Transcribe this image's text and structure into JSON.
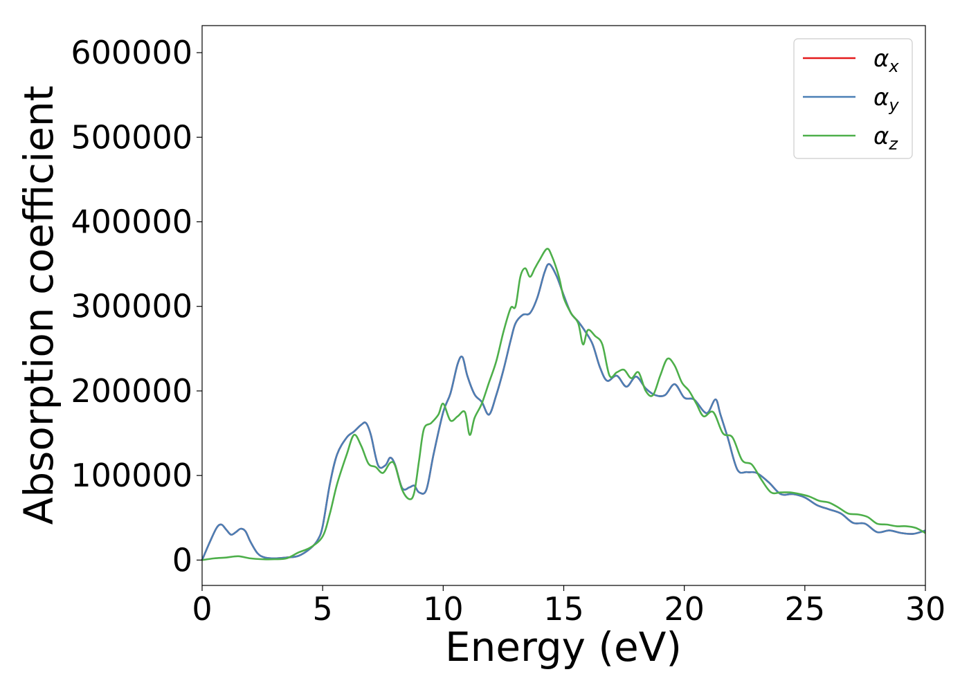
{
  "chart_data": {
    "type": "line",
    "xlabel": "Energy (eV)",
    "ylabel": "Absorption coefficient",
    "xlim": [
      0,
      30
    ],
    "ylim": [
      -30000,
      632000
    ],
    "xticks": [
      0,
      5,
      10,
      15,
      20,
      25,
      30
    ],
    "yticks": [
      0,
      100000,
      200000,
      300000,
      400000,
      500000,
      600000
    ],
    "xtick_labels": [
      "0",
      "5",
      "10",
      "15",
      "20",
      "25",
      "30"
    ],
    "ytick_labels": [
      "0",
      "100000",
      "200000",
      "300000",
      "400000",
      "500000",
      "600000"
    ],
    "grid": false,
    "legend_position": "top-right",
    "series": [
      {
        "name": "αx",
        "name_base": "α",
        "name_sub": "x",
        "color": "#e41a1c",
        "x": [
          0,
          0.3,
          0.6,
          0.8,
          1.0,
          1.2,
          1.4,
          1.6,
          1.8,
          2.0,
          2.3,
          2.6,
          3.0,
          3.5,
          4.0,
          4.5,
          4.8,
          5.0,
          5.3,
          5.6,
          6.0,
          6.3,
          6.6,
          6.8,
          7.0,
          7.3,
          7.6,
          7.8,
          8.0,
          8.3,
          8.6,
          8.8,
          9.0,
          9.3,
          9.6,
          10.0,
          10.3,
          10.6,
          10.8,
          11.0,
          11.3,
          11.6,
          11.9,
          12.2,
          12.5,
          12.8,
          13.0,
          13.3,
          13.6,
          13.9,
          14.2,
          14.4,
          14.7,
          15.0,
          15.3,
          15.6,
          15.9,
          16.2,
          16.5,
          16.8,
          17.2,
          17.6,
          18.0,
          18.4,
          18.8,
          19.2,
          19.6,
          20.0,
          20.4,
          20.8,
          21.0,
          21.3,
          21.5,
          21.8,
          22.2,
          22.6,
          23.0,
          23.5,
          24.0,
          24.5,
          25.0,
          25.5,
          26.0,
          26.5,
          27.0,
          27.5,
          28.0,
          28.5,
          29.0,
          29.5,
          30.0
        ],
        "y": [
          0,
          20000,
          38000,
          42000,
          36000,
          30000,
          33000,
          37000,
          34000,
          22000,
          8000,
          3000,
          2000,
          3000,
          5000,
          14000,
          24000,
          40000,
          90000,
          125000,
          145000,
          152000,
          160000,
          162000,
          148000,
          112000,
          112000,
          121000,
          113000,
          85000,
          86000,
          88000,
          80000,
          83000,
          125000,
          175000,
          197000,
          232000,
          240000,
          218000,
          196000,
          187000,
          172000,
          195000,
          225000,
          260000,
          280000,
          290000,
          292000,
          310000,
          340000,
          350000,
          336000,
          313000,
          292000,
          282000,
          270000,
          255000,
          228000,
          212000,
          218000,
          205000,
          217000,
          203000,
          195000,
          195000,
          208000,
          192000,
          190000,
          176000,
          175000,
          190000,
          172000,
          145000,
          107000,
          104000,
          103000,
          92000,
          78000,
          78000,
          74000,
          65000,
          60000,
          55000,
          44000,
          43000,
          33000,
          35000,
          32000,
          31000,
          35000
        ]
      },
      {
        "name": "αy",
        "name_base": "α",
        "name_sub": "y",
        "color": "#4a7fb5",
        "x": [
          0,
          0.3,
          0.6,
          0.8,
          1.0,
          1.2,
          1.4,
          1.6,
          1.8,
          2.0,
          2.3,
          2.6,
          3.0,
          3.5,
          4.0,
          4.5,
          4.8,
          5.0,
          5.3,
          5.6,
          6.0,
          6.3,
          6.6,
          6.8,
          7.0,
          7.3,
          7.6,
          7.8,
          8.0,
          8.3,
          8.6,
          8.8,
          9.0,
          9.3,
          9.6,
          10.0,
          10.3,
          10.6,
          10.8,
          11.0,
          11.3,
          11.6,
          11.9,
          12.2,
          12.5,
          12.8,
          13.0,
          13.3,
          13.6,
          13.9,
          14.2,
          14.4,
          14.7,
          15.0,
          15.3,
          15.6,
          15.9,
          16.2,
          16.5,
          16.8,
          17.2,
          17.6,
          18.0,
          18.4,
          18.8,
          19.2,
          19.6,
          20.0,
          20.4,
          20.8,
          21.0,
          21.3,
          21.5,
          21.8,
          22.2,
          22.6,
          23.0,
          23.5,
          24.0,
          24.5,
          25.0,
          25.5,
          26.0,
          26.5,
          27.0,
          27.5,
          28.0,
          28.5,
          29.0,
          29.5,
          30.0
        ],
        "y": [
          0,
          20000,
          38000,
          42000,
          36000,
          30000,
          33000,
          37000,
          34000,
          22000,
          8000,
          3000,
          2000,
          3000,
          5000,
          14000,
          24000,
          40000,
          90000,
          125000,
          145000,
          152000,
          160000,
          162000,
          148000,
          112000,
          112000,
          121000,
          113000,
          85000,
          86000,
          88000,
          80000,
          83000,
          125000,
          175000,
          197000,
          232000,
          240000,
          218000,
          196000,
          187000,
          172000,
          195000,
          225000,
          260000,
          280000,
          290000,
          292000,
          310000,
          340000,
          350000,
          336000,
          313000,
          292000,
          282000,
          270000,
          255000,
          228000,
          212000,
          218000,
          205000,
          217000,
          203000,
          195000,
          195000,
          208000,
          192000,
          190000,
          176000,
          175000,
          190000,
          172000,
          145000,
          107000,
          104000,
          103000,
          92000,
          78000,
          78000,
          74000,
          65000,
          60000,
          55000,
          44000,
          43000,
          33000,
          35000,
          32000,
          31000,
          35000
        ]
      },
      {
        "name": "αz",
        "name_base": "α",
        "name_sub": "z",
        "color": "#4daf4a",
        "x": [
          0,
          0.5,
          1.0,
          1.5,
          2.0,
          2.5,
          3.0,
          3.5,
          4.0,
          4.5,
          5.0,
          5.3,
          5.6,
          6.0,
          6.3,
          6.6,
          6.9,
          7.2,
          7.5,
          7.8,
          8.0,
          8.3,
          8.6,
          8.8,
          9.0,
          9.2,
          9.5,
          9.8,
          10.0,
          10.3,
          10.6,
          10.9,
          11.1,
          11.3,
          11.6,
          11.9,
          12.2,
          12.5,
          12.8,
          13.0,
          13.2,
          13.4,
          13.6,
          13.8,
          14.0,
          14.3,
          14.5,
          14.8,
          15.0,
          15.3,
          15.6,
          15.8,
          16.0,
          16.3,
          16.6,
          16.9,
          17.2,
          17.5,
          17.8,
          18.1,
          18.4,
          18.7,
          19.0,
          19.3,
          19.6,
          19.9,
          20.2,
          20.5,
          20.8,
          21.2,
          21.6,
          22.0,
          22.4,
          22.8,
          23.2,
          23.6,
          24.0,
          24.4,
          24.8,
          25.2,
          25.6,
          26.0,
          26.4,
          26.8,
          27.2,
          27.6,
          28.0,
          28.4,
          28.8,
          29.2,
          29.6,
          30.0
        ],
        "y": [
          0,
          2000,
          3000,
          4500,
          2000,
          1000,
          1000,
          2000,
          9000,
          15000,
          28000,
          55000,
          90000,
          125000,
          148000,
          135000,
          114000,
          110000,
          103000,
          115000,
          112000,
          83000,
          72000,
          80000,
          118000,
          155000,
          162000,
          172000,
          185000,
          165000,
          170000,
          175000,
          148000,
          168000,
          185000,
          210000,
          235000,
          270000,
          298000,
          300000,
          335000,
          345000,
          335000,
          345000,
          355000,
          368000,
          360000,
          335000,
          310000,
          292000,
          280000,
          255000,
          272000,
          265000,
          255000,
          218000,
          222000,
          225000,
          215000,
          222000,
          200000,
          195000,
          218000,
          238000,
          230000,
          210000,
          200000,
          185000,
          170000,
          175000,
          150000,
          145000,
          118000,
          113000,
          95000,
          80000,
          80000,
          80000,
          78000,
          75000,
          70000,
          68000,
          62000,
          55000,
          54000,
          51000,
          43000,
          42000,
          40000,
          40000,
          38000,
          32000
        ]
      }
    ]
  }
}
